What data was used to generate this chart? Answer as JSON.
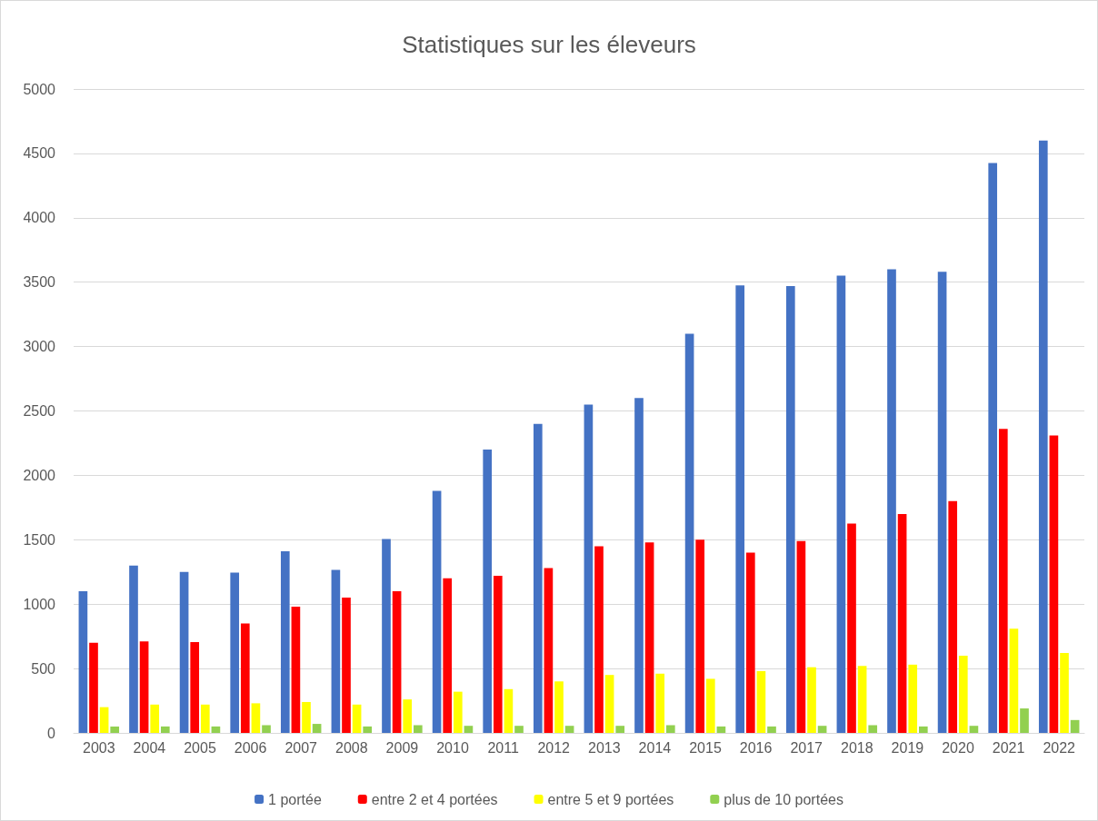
{
  "chart_data": {
    "type": "bar",
    "title": "Statistiques sur les éleveurs",
    "categories": [
      "2003",
      "2004",
      "2005",
      "2006",
      "2007",
      "2008",
      "2009",
      "2010",
      "2011",
      "2012",
      "2013",
      "2014",
      "2015",
      "2016",
      "2017",
      "2018",
      "2019",
      "2020",
      "2021",
      "2022"
    ],
    "series": [
      {
        "name": "1 portée",
        "color": "#4472c4",
        "values": [
          1100,
          1300,
          1250,
          1245,
          1410,
          1265,
          1505,
          1880,
          2200,
          2400,
          2550,
          2600,
          3100,
          3475,
          3470,
          3550,
          3600,
          3580,
          4425,
          4600
        ]
      },
      {
        "name": "entre 2 et 4 portées",
        "color": "#ff0000",
        "values": [
          700,
          710,
          705,
          850,
          980,
          1050,
          1100,
          1200,
          1220,
          1280,
          1450,
          1480,
          1500,
          1400,
          1490,
          1625,
          1700,
          1800,
          2360,
          2310
        ]
      },
      {
        "name": "entre 5 et 9 portées",
        "color": "#ffff00",
        "values": [
          200,
          220,
          220,
          230,
          240,
          220,
          260,
          320,
          340,
          400,
          450,
          460,
          420,
          480,
          510,
          520,
          530,
          600,
          810,
          620
        ]
      },
      {
        "name": "plus de 10 portées",
        "color": "#92d050",
        "values": [
          50,
          50,
          50,
          60,
          70,
          50,
          60,
          55,
          55,
          55,
          55,
          60,
          50,
          50,
          55,
          60,
          50,
          55,
          190,
          100
        ]
      }
    ],
    "ylim": [
      0,
      5000
    ],
    "yticks": [
      0,
      500,
      1000,
      1500,
      2000,
      2500,
      3000,
      3500,
      4000,
      4500,
      5000
    ],
    "grid": "y",
    "legend": "bottom"
  }
}
